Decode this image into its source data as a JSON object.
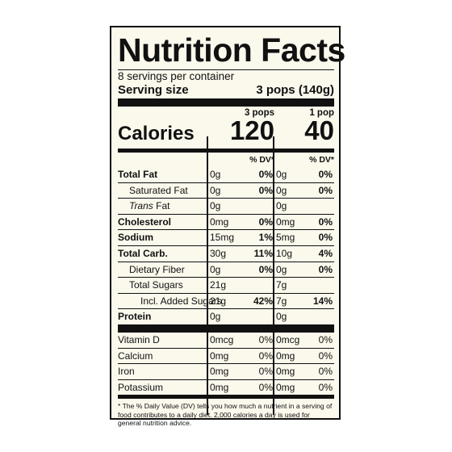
{
  "title": "Nutrition Facts",
  "servings_per_container": "8 servings per container",
  "serving_size_label": "Serving size",
  "serving_size_value": "3 pops (140g)",
  "columns": [
    "3 pops",
    "1 pop"
  ],
  "calories_label": "Calories",
  "calories": [
    "120",
    "40"
  ],
  "dv_header": "% DV*",
  "nutrients": [
    {
      "name": "Total Fat",
      "style": "bold",
      "a1": "0g",
      "p1": "0%",
      "a2": "0g",
      "p2": "0%"
    },
    {
      "name": "Saturated Fat",
      "style": "ind1",
      "a1": "0g",
      "p1": "0%",
      "a2": "0g",
      "p2": "0%"
    },
    {
      "name": "Trans Fat",
      "style": "ind1",
      "a1": "0g",
      "p1": "",
      "a2": "0g",
      "p2": ""
    },
    {
      "name": "Cholesterol",
      "style": "bold",
      "a1": "0mg",
      "p1": "0%",
      "a2": "0mg",
      "p2": "0%"
    },
    {
      "name": "Sodium",
      "style": "bold",
      "a1": "15mg",
      "p1": "1%",
      "a2": "5mg",
      "p2": "0%"
    },
    {
      "name": "Total Carb.",
      "style": "bold",
      "a1": "30g",
      "p1": "11%",
      "a2": "10g",
      "p2": "4%"
    },
    {
      "name": "Dietary Fiber",
      "style": "ind1",
      "a1": "0g",
      "p1": "0%",
      "a2": "0g",
      "p2": "0%"
    },
    {
      "name": "Total Sugars",
      "style": "ind1",
      "a1": "21g",
      "p1": "",
      "a2": "7g",
      "p2": ""
    },
    {
      "name": "Incl. Added Sugars",
      "style": "ind2",
      "a1": "21g",
      "p1": "42%",
      "a2": "7g",
      "p2": "14%"
    },
    {
      "name": "Protein",
      "style": "bold",
      "a1": "0g",
      "p1": "",
      "a2": "0g",
      "p2": ""
    }
  ],
  "vitamins": [
    {
      "name": "Vitamin D",
      "a1": "0mcg",
      "p1": "0%",
      "a2": "0mcg",
      "p2": "0%"
    },
    {
      "name": "Calcium",
      "a1": "0mg",
      "p1": "0%",
      "a2": "0mg",
      "p2": "0%"
    },
    {
      "name": "Iron",
      "a1": "0mg",
      "p1": "0%",
      "a2": "0mg",
      "p2": "0%"
    },
    {
      "name": "Potassium",
      "a1": "0mg",
      "p1": "0%",
      "a2": "0mg",
      "p2": "0%"
    }
  ],
  "footnote": "* The % Daily Value (DV) tells you how much a nutrient in a serving of food contributes to a daily diet. 2,000 calories a day is used for general nutrition advice."
}
